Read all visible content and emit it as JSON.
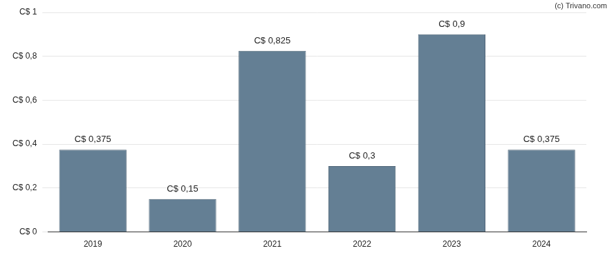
{
  "chart_data": {
    "type": "bar",
    "categories": [
      "2019",
      "2020",
      "2021",
      "2022",
      "2023",
      "2024"
    ],
    "values": [
      0.375,
      0.15,
      0.825,
      0.3,
      0.9,
      0.375
    ],
    "value_labels": [
      "C$ 0,375",
      "C$ 0,15",
      "C$ 0,825",
      "C$ 0,3",
      "C$ 0,9",
      "C$ 0,375"
    ],
    "data_labels": true,
    "color": "#647f94",
    "ylim": [
      0,
      1
    ],
    "yticks": [
      {
        "value": 0,
        "label": "C$ 0"
      },
      {
        "value": 0.2,
        "label": "C$ 0,2"
      },
      {
        "value": 0.4,
        "label": "C$ 0,4"
      },
      {
        "value": 0.6,
        "label": "C$ 0,6"
      },
      {
        "value": 0.8,
        "label": "C$ 0,8"
      },
      {
        "value": 1,
        "label": "C$ 1"
      }
    ],
    "grid": true,
    "annotations": [
      "(c) Trivano.com"
    ]
  }
}
